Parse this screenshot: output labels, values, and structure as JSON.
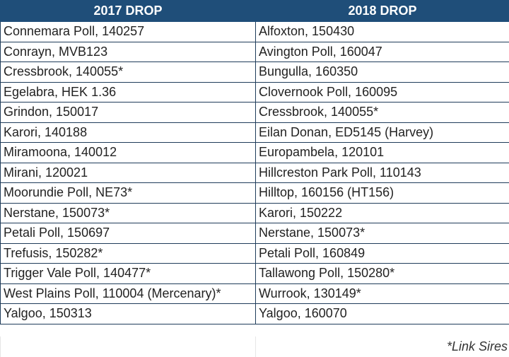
{
  "headers": [
    "2017 DROP",
    "2018 DROP"
  ],
  "rows": [
    [
      "Connemara Poll, 140257",
      "Alfoxton, 150430"
    ],
    [
      "Conrayn, MVB123",
      "Avington Poll, 160047"
    ],
    [
      "Cressbrook, 140055*",
      "Bungulla, 160350"
    ],
    [
      "Egelabra, HEK 1.36",
      "Clovernook Poll, 160095"
    ],
    [
      "Grindon, 150017",
      "Cressbrook, 140055*"
    ],
    [
      "Karori, 140188",
      "Eilan Donan, ED5145 (Harvey)"
    ],
    [
      "Miramoona, 140012",
      "Europambela, 120101"
    ],
    [
      "Mirani, 120021",
      "Hillcreston Park Poll, 110143"
    ],
    [
      "Moorundie Poll, NE73*",
      "Hilltop, 160156 (HT156)"
    ],
    [
      "Nerstane, 150073*",
      "Karori, 150222"
    ],
    [
      "Petali Poll, 150697",
      "Nerstane, 150073*"
    ],
    [
      "Trefusis, 150282*",
      "Petali Poll, 160849"
    ],
    [
      "Trigger Vale Poll, 140477*",
      "Tallawong Poll, 150280*"
    ],
    [
      "West Plains Poll, 110004 (Mercenary)*",
      "Wurrook, 130149*"
    ],
    [
      "Yalgoo, 150313",
      "Yalgoo, 160070"
    ]
  ],
  "footnote": "*Link Sires",
  "colors": {
    "header_bg": "#1f4e79",
    "header_text": "#ffffff",
    "border": "#1f3c5a"
  }
}
